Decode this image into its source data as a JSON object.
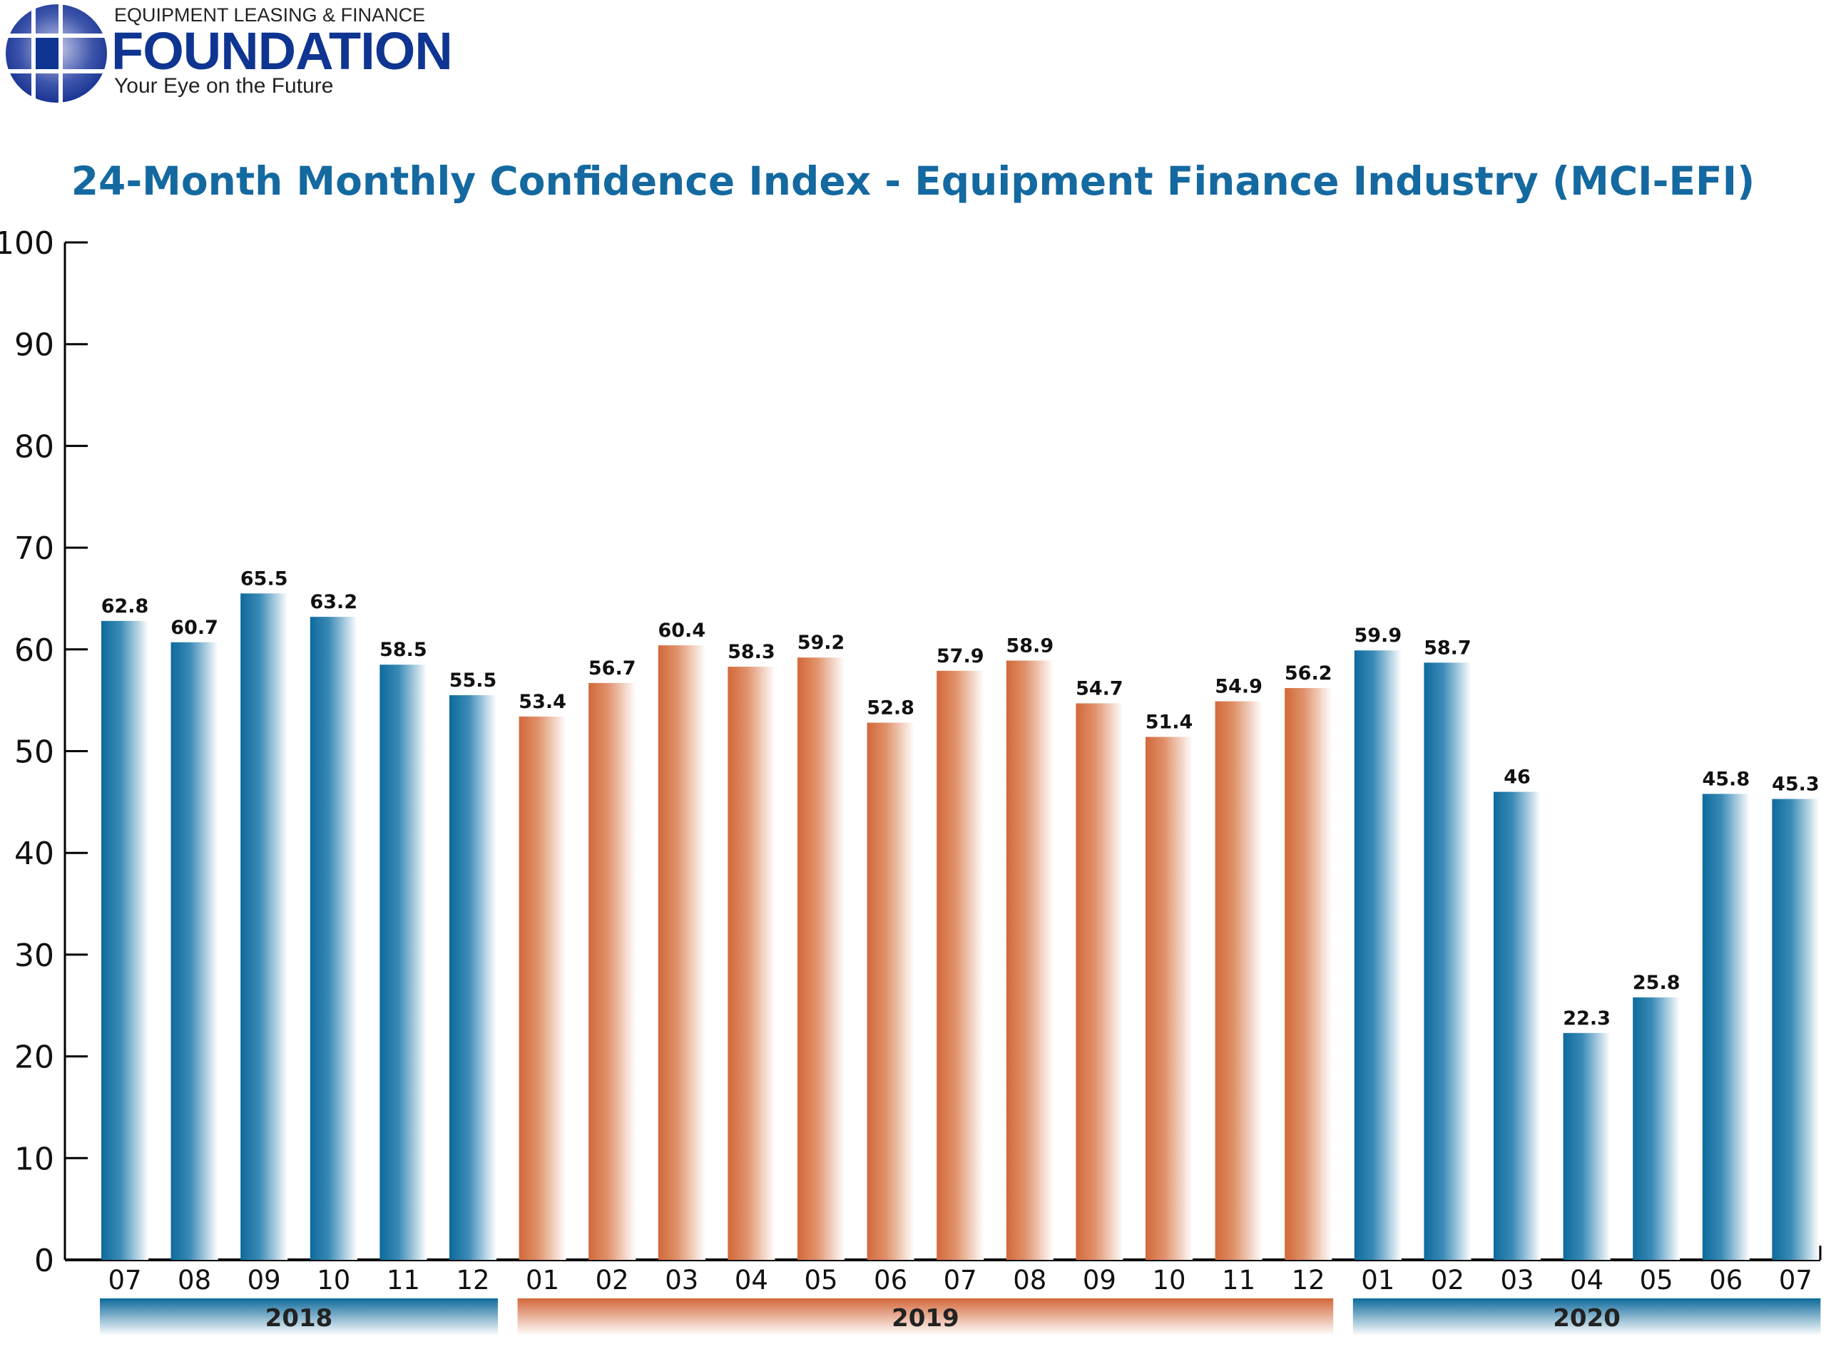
{
  "logo": {
    "line1": "EQUIPMENT LEASING & FINANCE",
    "name": "FOUNDATION",
    "tagline": "Your Eye on the Future",
    "color": "#0f3592"
  },
  "chart_data": {
    "type": "bar",
    "title": "24-Month Monthly Confidence Index - Equipment Finance Industry (MCI-EFI)",
    "xlabel": "",
    "ylabel": "",
    "ylim": [
      0,
      100
    ],
    "yticks": [
      0,
      10,
      20,
      30,
      40,
      50,
      60,
      70,
      80,
      90,
      100
    ],
    "grid": false,
    "categories": [
      "07",
      "08",
      "09",
      "10",
      "11",
      "12",
      "01",
      "02",
      "03",
      "04",
      "05",
      "06",
      "07",
      "08",
      "09",
      "10",
      "11",
      "12",
      "01",
      "02",
      "03",
      "04",
      "05",
      "06",
      "07"
    ],
    "values": [
      62.8,
      60.7,
      65.5,
      63.2,
      58.5,
      55.5,
      53.4,
      56.7,
      60.4,
      58.3,
      59.2,
      52.8,
      57.9,
      58.9,
      54.7,
      51.4,
      54.9,
      56.2,
      59.9,
      58.7,
      46,
      22.3,
      25.8,
      45.8,
      45.3
    ],
    "data_labels": [
      "62.8",
      "60.7",
      "65.5",
      "63.2",
      "58.5",
      "55.5",
      "53.4",
      "56.7",
      "60.4",
      "58.3",
      "59.2",
      "52.8",
      "57.9",
      "58.9",
      "54.7",
      "51.4",
      "54.9",
      "56.2",
      "59.9",
      "58.7",
      "46",
      "22.3",
      "25.8",
      "45.8",
      "45.3"
    ],
    "year_groups": [
      {
        "label": "2018",
        "start": 0,
        "end": 5,
        "color": "#0e6a9c"
      },
      {
        "label": "2019",
        "start": 6,
        "end": 17,
        "color": "#d2683a"
      },
      {
        "label": "2020",
        "start": 18,
        "end": 24,
        "color": "#0e6a9c"
      }
    ]
  }
}
